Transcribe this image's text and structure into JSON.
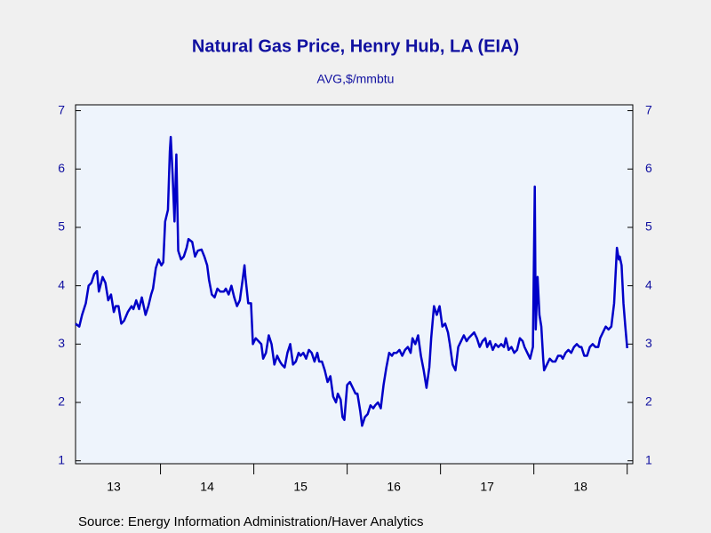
{
  "chart_data": {
    "type": "line",
    "title": "Natural Gas Price, Henry Hub, LA (EIA)",
    "subtitle": "AVG,$/mmbtu",
    "source": "Source:  Energy Information Administration/Haver Analytics",
    "color": "#0000c8",
    "x": [
      2013.09,
      2013.13,
      2013.16,
      2013.2,
      2013.23,
      2013.26,
      2013.29,
      2013.32,
      2013.34,
      2013.38,
      2013.41,
      2013.44,
      2013.47,
      2013.5,
      2013.52,
      2013.55,
      2013.58,
      2013.61,
      2013.65,
      2013.69,
      2013.71,
      2013.74,
      2013.77,
      2013.8,
      2013.84,
      2013.87,
      2013.9,
      2013.92,
      2013.95,
      2013.98,
      2014.01,
      2014.03,
      2014.05,
      2014.08,
      2014.1,
      2014.11,
      2014.13,
      2014.15,
      2014.17,
      2014.19,
      2014.22,
      2014.25,
      2014.28,
      2014.3,
      2014.34,
      2014.37,
      2014.4,
      2014.44,
      2014.47,
      2014.5,
      2014.52,
      2014.55,
      2014.58,
      2014.61,
      2014.64,
      2014.68,
      2014.7,
      2014.73,
      2014.76,
      2014.79,
      2014.82,
      2014.85,
      2014.88,
      2014.9,
      2014.91,
      2014.94,
      2014.97,
      2014.99,
      2015.02,
      2015.05,
      2015.08,
      2015.1,
      2015.13,
      2015.16,
      2015.19,
      2015.22,
      2015.25,
      2015.28,
      2015.3,
      2015.33,
      2015.36,
      2015.39,
      2015.42,
      2015.45,
      2015.48,
      2015.5,
      2015.53,
      2015.56,
      2015.59,
      2015.62,
      2015.65,
      2015.68,
      2015.7,
      2015.73,
      2015.76,
      2015.79,
      2015.82,
      2015.85,
      2015.88,
      2015.9,
      2015.93,
      2015.95,
      2015.97,
      2016.0,
      2016.03,
      2016.06,
      2016.09,
      2016.11,
      2016.14,
      2016.16,
      2016.19,
      2016.22,
      2016.25,
      2016.28,
      2016.3,
      2016.33,
      2016.36,
      2016.39,
      2016.42,
      2016.45,
      2016.48,
      2016.5,
      2016.53,
      2016.56,
      2016.59,
      2016.62,
      2016.65,
      2016.68,
      2016.7,
      2016.73,
      2016.76,
      2016.79,
      2016.82,
      2016.85,
      2016.88,
      2016.9,
      2016.93,
      2016.96,
      2016.99,
      2017.02,
      2017.05,
      2017.08,
      2017.1,
      2017.13,
      2017.16,
      2017.19,
      2017.22,
      2017.25,
      2017.28,
      2017.3,
      2017.33,
      2017.36,
      2017.39,
      2017.42,
      2017.45,
      2017.48,
      2017.5,
      2017.53,
      2017.56,
      2017.59,
      2017.62,
      2017.65,
      2017.68,
      2017.7,
      2017.73,
      2017.76,
      2017.79,
      2017.82,
      2017.85,
      2017.88,
      2017.9,
      2017.93,
      2017.96,
      2017.99,
      2018.01,
      2018.02,
      2018.04,
      2018.06,
      2018.08,
      2018.1,
      2018.11,
      2018.14,
      2018.17,
      2018.2,
      2018.23,
      2018.26,
      2018.29,
      2018.31,
      2018.34,
      2018.37,
      2018.4,
      2018.43,
      2018.46,
      2018.49,
      2018.51,
      2018.54,
      2018.57,
      2018.6,
      2018.63,
      2018.66,
      2018.69,
      2018.71,
      2018.74,
      2018.77,
      2018.8,
      2018.83,
      2018.86,
      2018.89,
      2018.91,
      2018.92,
      2018.94,
      2018.96,
      2018.98,
      2019.0
    ],
    "values": [
      3.35,
      3.3,
      3.5,
      3.7,
      4.0,
      4.05,
      4.2,
      4.25,
      3.9,
      4.15,
      4.05,
      3.75,
      3.85,
      3.55,
      3.65,
      3.65,
      3.35,
      3.4,
      3.55,
      3.65,
      3.6,
      3.75,
      3.6,
      3.8,
      3.5,
      3.65,
      3.85,
      3.95,
      4.3,
      4.45,
      4.35,
      4.4,
      5.1,
      5.3,
      6.3,
      6.55,
      5.9,
      5.1,
      6.25,
      4.6,
      4.45,
      4.5,
      4.65,
      4.8,
      4.75,
      4.5,
      4.6,
      4.62,
      4.5,
      4.35,
      4.1,
      3.85,
      3.8,
      3.95,
      3.9,
      3.9,
      3.95,
      3.85,
      4.0,
      3.8,
      3.65,
      3.75,
      4.1,
      4.35,
      4.15,
      3.7,
      3.7,
      3.0,
      3.1,
      3.05,
      3.0,
      2.75,
      2.85,
      3.15,
      3.0,
      2.65,
      2.8,
      2.7,
      2.65,
      2.6,
      2.85,
      3.0,
      2.65,
      2.7,
      2.85,
      2.8,
      2.85,
      2.75,
      2.9,
      2.85,
      2.7,
      2.85,
      2.7,
      2.7,
      2.55,
      2.35,
      2.45,
      2.1,
      2.0,
      2.15,
      2.05,
      1.75,
      1.7,
      2.3,
      2.35,
      2.25,
      2.15,
      2.15,
      1.85,
      1.6,
      1.75,
      1.8,
      1.95,
      1.9,
      1.95,
      2.0,
      1.9,
      2.3,
      2.6,
      2.85,
      2.8,
      2.85,
      2.85,
      2.9,
      2.8,
      2.9,
      2.95,
      2.85,
      3.1,
      3.0,
      3.15,
      2.8,
      2.55,
      2.25,
      2.6,
      3.1,
      3.65,
      3.5,
      3.65,
      3.3,
      3.35,
      3.2,
      3.0,
      2.65,
      2.55,
      2.95,
      3.05,
      3.15,
      3.05,
      3.1,
      3.15,
      3.2,
      3.1,
      2.95,
      3.05,
      3.1,
      2.95,
      3.05,
      2.9,
      3.0,
      2.95,
      3.0,
      2.95,
      3.1,
      2.9,
      2.95,
      2.85,
      2.9,
      3.1,
      3.05,
      2.95,
      2.85,
      2.75,
      2.95,
      5.7,
      3.25,
      4.15,
      3.5,
      3.3,
      2.75,
      2.55,
      2.65,
      2.75,
      2.7,
      2.7,
      2.8,
      2.8,
      2.75,
      2.85,
      2.9,
      2.85,
      2.95,
      3.0,
      2.95,
      2.95,
      2.8,
      2.8,
      2.95,
      3.0,
      2.95,
      2.95,
      3.1,
      3.2,
      3.3,
      3.25,
      3.3,
      3.7,
      4.65,
      4.45,
      4.5,
      4.35,
      3.7,
      3.3,
      2.93
    ],
    "xlim": [
      2013.09,
      2019.06
    ],
    "xticks": [
      {
        "value": 2013.5,
        "label": "13"
      },
      {
        "value": 2014.5,
        "label": "14"
      },
      {
        "value": 2015.5,
        "label": "15"
      },
      {
        "value": 2016.5,
        "label": "16"
      },
      {
        "value": 2017.5,
        "label": "17"
      },
      {
        "value": 2018.5,
        "label": "18"
      }
    ],
    "xminor_ticks": [
      2014,
      2015,
      2016,
      2017,
      2018,
      2019
    ],
    "ylim": [
      0.95,
      7.1
    ],
    "yticks": [
      1,
      2,
      3,
      4,
      5,
      6,
      7
    ],
    "y2lim": [
      0.95,
      7.1
    ],
    "y2ticks": [
      1,
      2,
      3,
      4,
      5,
      6,
      7
    ],
    "grid": false
  }
}
